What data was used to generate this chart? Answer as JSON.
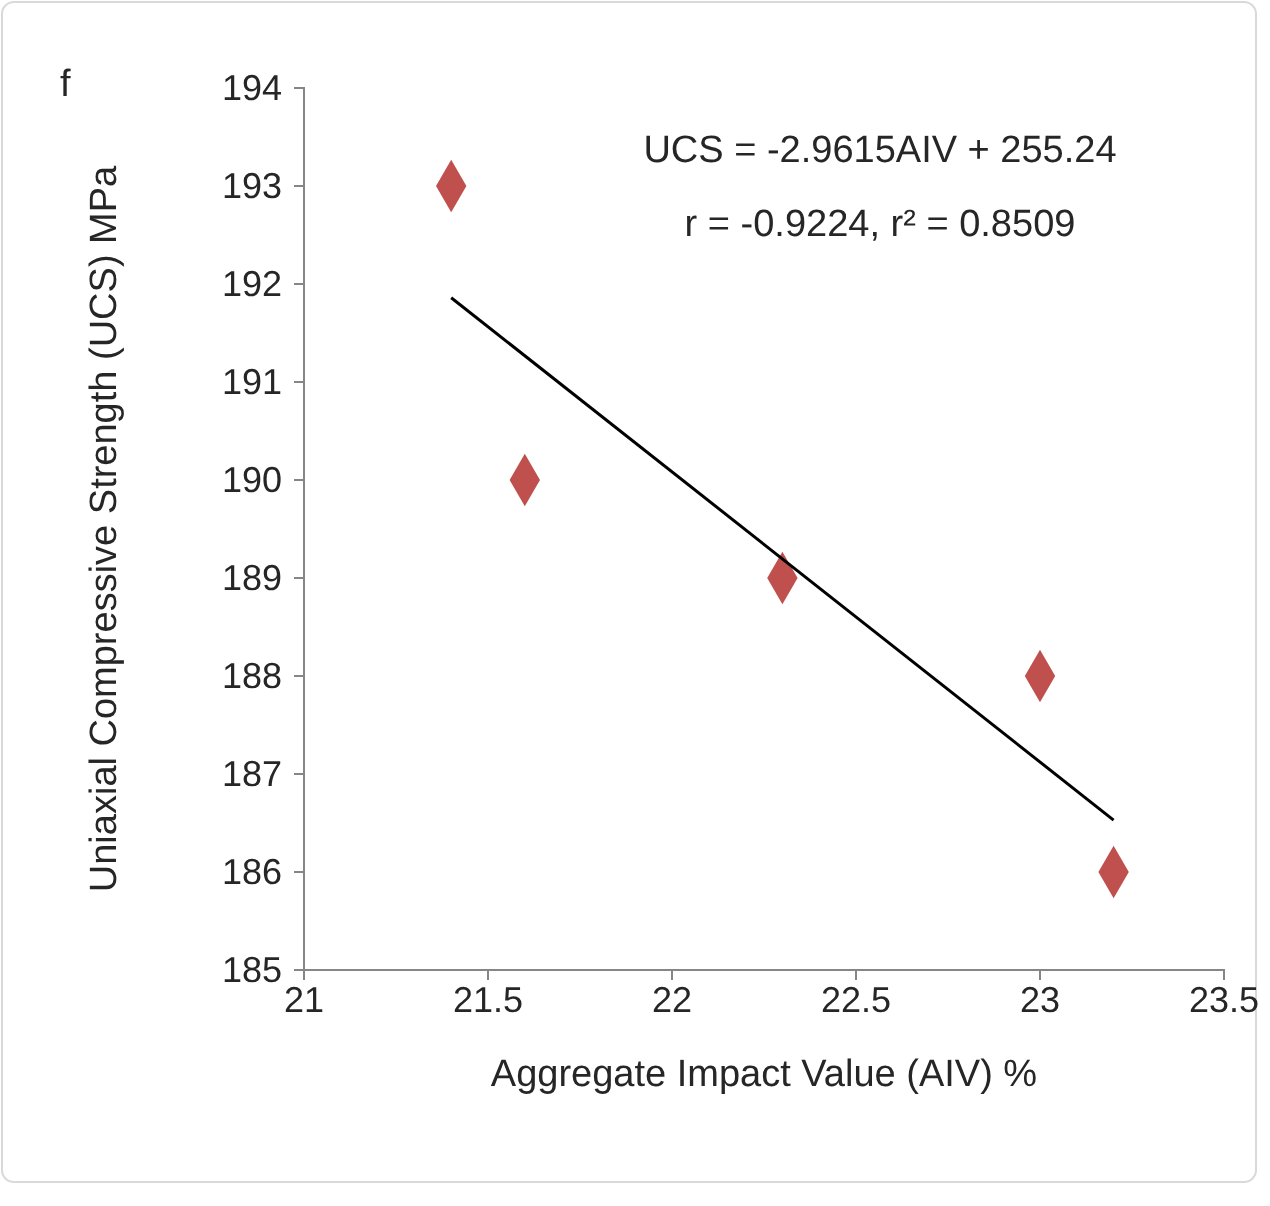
{
  "chart_data": {
    "type": "scatter",
    "xlabel": "Aggregate Impact Value (AIV) %",
    "ylabel": "Uniaxial Compressive Strength (UCS) MPa",
    "annotations": [
      "f",
      "UCS = -2.9615AIV + 255.24",
      "r = -0.9224, r² = 0.8509"
    ],
    "x": [
      21.4,
      21.6,
      22.3,
      23,
      23.2
    ],
    "series": [
      {
        "color": "#c0504d",
        "marker": "diamond",
        "values": [
          193,
          190,
          189,
          188,
          186
        ]
      },
      {
        "type": "line",
        "color": "#000000",
        "x": [
          21.4,
          23.2
        ],
        "values": [
          191.86,
          186.53
        ]
      }
    ],
    "xlim": [
      21,
      23.5
    ],
    "xticks": [
      21,
      21.5,
      22,
      22.5,
      23,
      23.5
    ],
    "ylim": [
      185,
      194
    ],
    "yticks": [
      185,
      186,
      187,
      188,
      189,
      190,
      191,
      192,
      193,
      194
    ],
    "grid": false
  }
}
